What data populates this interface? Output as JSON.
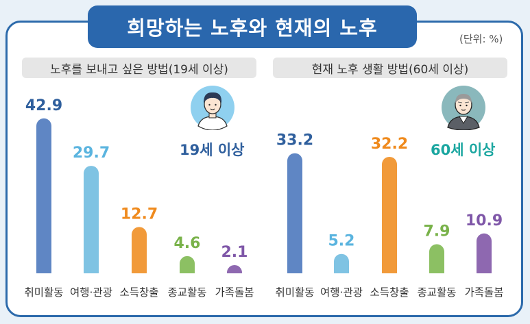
{
  "title": "희망하는 노후와 현재의 노후",
  "unit": "(단위: %)",
  "chart_data": [
    {
      "type": "bar",
      "title": "노후를 보내고 싶은 방법(19세 이상)",
      "group_label": "19세 이상",
      "categories": [
        "취미활동",
        "여행·관광",
        "소득창출",
        "종교활동",
        "가족돌봄"
      ],
      "values": [
        42.9,
        29.7,
        12.7,
        4.6,
        2.1
      ],
      "colors": [
        "#5f86c4",
        "#7fc3e3",
        "#f19a3a",
        "#8cc063",
        "#8e68b0"
      ],
      "label_colors": [
        "#2f5f9d",
        "#5ab4df",
        "#ef8a1d",
        "#79b24a",
        "#7f57a8"
      ]
    },
    {
      "type": "bar",
      "title": "현재 노후 생활 방법(60세 이상)",
      "group_label": "60세 이상",
      "categories": [
        "취미활동",
        "여행·관광",
        "소득창출",
        "종교활동",
        "가족돌봄"
      ],
      "values": [
        33.2,
        5.2,
        32.2,
        7.9,
        10.9
      ],
      "colors": [
        "#5f86c4",
        "#7fc3e3",
        "#f19a3a",
        "#8cc063",
        "#8e68b0"
      ],
      "label_colors": [
        "#2f5f9d",
        "#5ab4df",
        "#ef8a1d",
        "#79b24a",
        "#7f57a8"
      ]
    }
  ],
  "colors": {
    "frame": "#2c6aab",
    "age_label_left": "#2f5f9d",
    "age_label_right": "#1aa6a0"
  }
}
